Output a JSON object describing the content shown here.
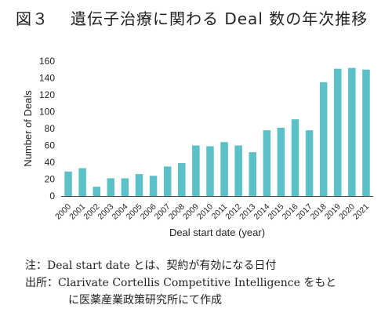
{
  "title": {
    "figure_label": "図３",
    "text": "遺伝子治療に関わる Deal 数の年次推移"
  },
  "chart_data": {
    "type": "bar",
    "categories": [
      "2000",
      "2001",
      "2002",
      "2003",
      "2004",
      "2005",
      "2006",
      "2007",
      "2008",
      "2009",
      "2010",
      "2011",
      "2012",
      "2013",
      "2014",
      "2015",
      "2016",
      "2017",
      "2018",
      "2019",
      "2020",
      "2021"
    ],
    "series": [
      {
        "values": [
          29,
          33,
          11,
          21,
          21,
          26,
          24,
          35,
          39,
          60,
          59,
          64,
          60,
          52,
          78,
          81,
          91,
          78,
          135,
          151,
          152,
          150
        ]
      }
    ],
    "xlabel": "Deal start date (year)",
    "ylabel": "Number of Deals",
    "ylim": [
      0,
      160
    ],
    "yticks": [
      0,
      20,
      40,
      60,
      80,
      100,
      120,
      140,
      160
    ],
    "grid": false,
    "bar_color": "#5bc0c8"
  },
  "notes": {
    "note": "注：Deal start date とは、契約が有効になる日付",
    "source_line1": "出所：Clarivate Cortellis Competitive Intelligence をもと",
    "source_line2": "に医薬産業政策研究所にて作成"
  }
}
